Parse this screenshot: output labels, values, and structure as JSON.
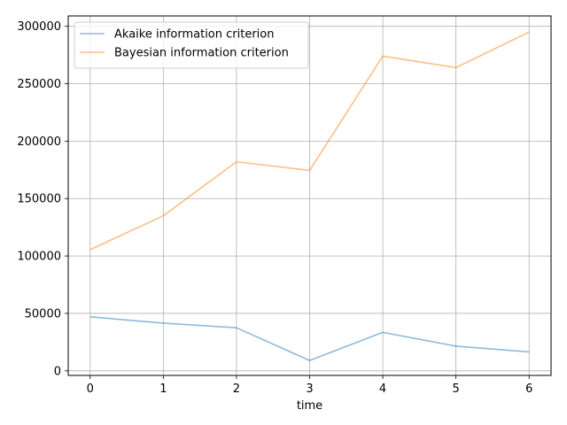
{
  "chart_data": {
    "type": "line",
    "xlabel": "time",
    "ylabel": "",
    "title": "",
    "x": [
      0,
      1,
      2,
      3,
      4,
      5,
      6
    ],
    "xlim": [
      -0.3,
      6.3
    ],
    "ylim": [
      -4000,
      309000
    ],
    "x_ticks": [
      "0",
      "1",
      "2",
      "3",
      "4",
      "5",
      "6"
    ],
    "y_ticks": [
      "0",
      "50000",
      "100000",
      "150000",
      "200000",
      "250000",
      "300000"
    ],
    "grid": true,
    "legend_position": "top-left",
    "series": [
      {
        "name": "Akaike information criterion",
        "color": "#1f77b4",
        "values": [
          47000,
          41500,
          37500,
          9000,
          33500,
          21500,
          16500
        ]
      },
      {
        "name": "Bayesian information criterion",
        "color": "#ff7f0e",
        "values": [
          105500,
          135000,
          182000,
          174500,
          274000,
          264000,
          295000
        ]
      }
    ]
  }
}
